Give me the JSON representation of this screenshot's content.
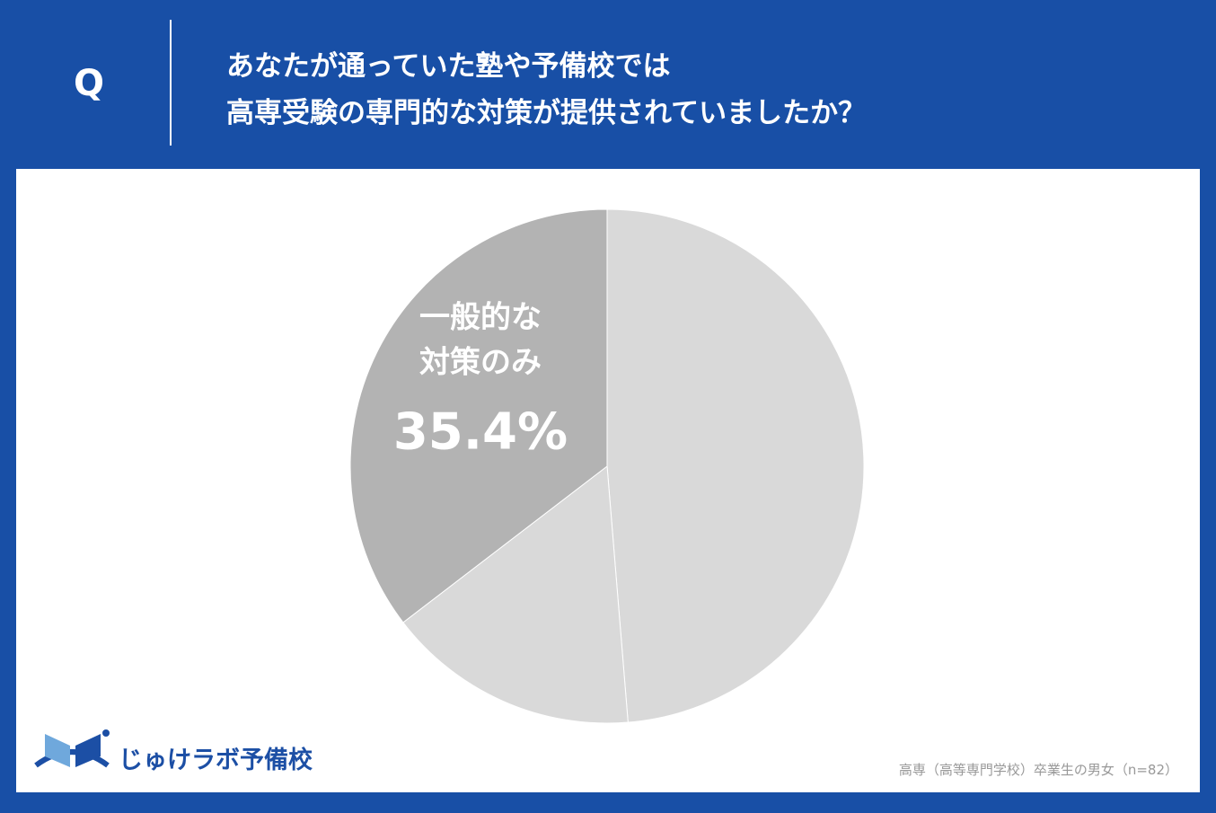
{
  "header": {
    "q": "Q",
    "title": [
      "あなたが通っていた塾や予備校では",
      "高専受験の専門的な対策が提供されていましたか？"
    ]
  },
  "chart_data": {
    "type": "pie",
    "categories": [
      null,
      null,
      "一般的な対策のみ"
    ],
    "values": [
      48.7,
      15.9,
      35.4
    ],
    "value_labels": [
      null,
      null,
      "35.4%"
    ],
    "colors": [
      "#d9d9d9",
      "#d9d9d9",
      "#b3b3b3"
    ]
  },
  "footer": {
    "logo": "じゅけラボ予備校",
    "note": "高専（高等専門学校）卒業生の男女（n=82）"
  }
}
